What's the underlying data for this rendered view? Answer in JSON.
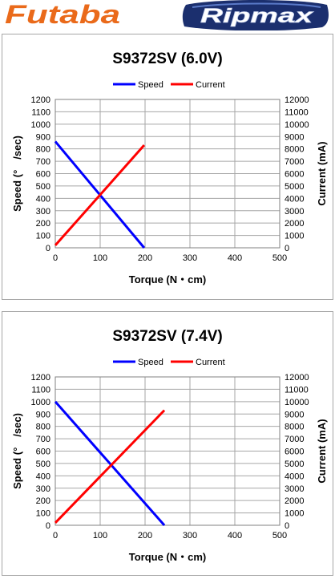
{
  "header": {
    "futaba_logo_text": "Futaba",
    "ripmax_logo_text": "Ripmax"
  },
  "colors": {
    "speed": "#0000ff",
    "current": "#ff0000",
    "futaba_orange": "#ea6a1a",
    "ripmax_navy": "#1b2f6e",
    "grid": "#a6a6a6"
  },
  "legend": {
    "speed": "Speed",
    "current": "Current"
  },
  "chart_data": [
    {
      "type": "line",
      "title": "S9372SV (6.0V)",
      "xlabel": "Torque (N・cm)",
      "ylabel": "Speed (°　/sec)",
      "y2label": "Current (mA)",
      "xlim": [
        0,
        500
      ],
      "ylim": [
        0,
        1200
      ],
      "y2lim": [
        0,
        12000
      ],
      "xticks": [
        0,
        100,
        200,
        300,
        400,
        500
      ],
      "yticks": [
        0,
        100,
        200,
        300,
        400,
        500,
        600,
        700,
        800,
        900,
        1000,
        1100,
        1200
      ],
      "y2ticks": [
        0,
        1000,
        2000,
        3000,
        4000,
        5000,
        6000,
        7000,
        8000,
        9000,
        10000,
        11000,
        12000
      ],
      "grid": true,
      "legend_position": "top",
      "series": [
        {
          "name": "Speed",
          "axis": "left",
          "x": [
            0,
            198
          ],
          "values": [
            860,
            0
          ]
        },
        {
          "name": "Current",
          "axis": "right",
          "x": [
            0,
            198
          ],
          "values": [
            200,
            8300
          ]
        }
      ]
    },
    {
      "type": "line",
      "title": "S9372SV (7.4V)",
      "xlabel": "Torque (N・cm)",
      "ylabel": "Speed (°　/sec)",
      "y2label": "Current (mA)",
      "xlim": [
        0,
        500
      ],
      "ylim": [
        0,
        1200
      ],
      "y2lim": [
        0,
        12000
      ],
      "xticks": [
        0,
        100,
        200,
        300,
        400,
        500
      ],
      "yticks": [
        0,
        100,
        200,
        300,
        400,
        500,
        600,
        700,
        800,
        900,
        1000,
        1100,
        1200
      ],
      "y2ticks": [
        0,
        1000,
        2000,
        3000,
        4000,
        5000,
        6000,
        7000,
        8000,
        9000,
        10000,
        11000,
        12000
      ],
      "grid": true,
      "legend_position": "top",
      "series": [
        {
          "name": "Speed",
          "axis": "left",
          "x": [
            0,
            243
          ],
          "values": [
            1000,
            0
          ]
        },
        {
          "name": "Current",
          "axis": "right",
          "x": [
            0,
            243
          ],
          "values": [
            200,
            9300
          ]
        }
      ]
    }
  ]
}
